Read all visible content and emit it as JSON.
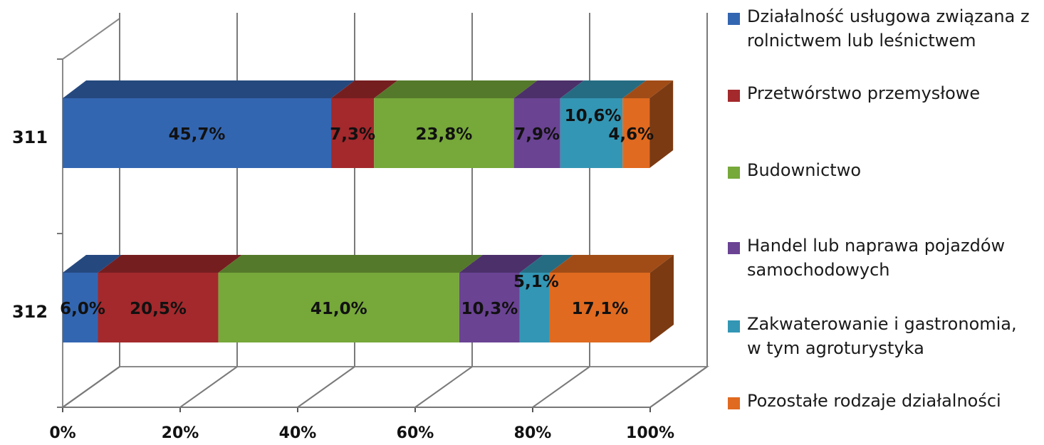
{
  "chart_data": {
    "type": "bar",
    "orientation": "horizontal",
    "stacked": "100%",
    "three_d": true,
    "categories": [
      "311",
      "312"
    ],
    "series": [
      {
        "name": "Działalność usługowa związana z rolnictwem lub leśnictwem",
        "color": "#3366b1",
        "values": [
          45.7,
          6.0
        ]
      },
      {
        "name": "Przetwórstwo przemysłowe",
        "color": "#a3292c",
        "values": [
          7.3,
          20.5
        ]
      },
      {
        "name": "Budownictwo",
        "color": "#76a83a",
        "values": [
          23.8,
          41.0
        ]
      },
      {
        "name": "Handel lub naprawa pojazdów samochodowych",
        "color": "#6a4393",
        "values": [
          7.9,
          10.3
        ]
      },
      {
        "name": "Zakwaterowanie i gastronomia, w tym agroturystyka",
        "color": "#3396b4",
        "values": [
          10.6,
          5.1
        ]
      },
      {
        "name": "Pozostałe rodzaje działalności",
        "color": "#e06a20",
        "values": [
          4.6,
          17.1
        ]
      }
    ],
    "data_labels": [
      [
        "45,7%",
        "7,3%",
        "23,8%",
        "7,9%",
        "10,6%",
        "4,6%"
      ],
      [
        "6,0%",
        "20,5%",
        "41,0%",
        "10,3%",
        "5,1%",
        "17,1%"
      ]
    ],
    "x_ticks": [
      "0%",
      "20%",
      "40%",
      "60%",
      "80%",
      "100%"
    ],
    "xlim": [
      0,
      100
    ],
    "grid": true,
    "legend_position": "right"
  }
}
